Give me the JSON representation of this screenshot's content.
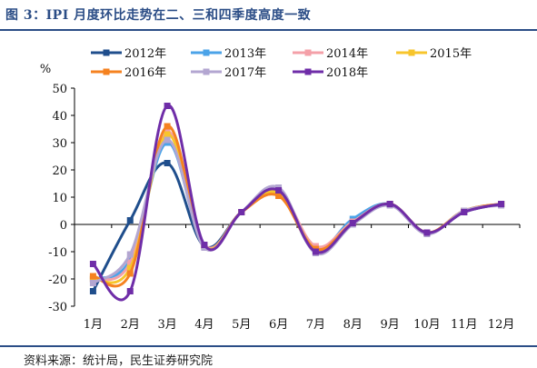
{
  "title": "图 3：IPI 月度环比走势在二、三和四季度高度一致",
  "source": "资料来源：统计局，民生证券研究院",
  "chart_data": {
    "type": "line",
    "ylabel": "%",
    "ylim": [
      -30,
      50
    ],
    "yticks": [
      50,
      40,
      30,
      20,
      10,
      0,
      -10,
      -20,
      -30
    ],
    "categories": [
      "1月",
      "2月",
      "3月",
      "4月",
      "5月",
      "6月",
      "7月",
      "8月",
      "9月",
      "10月",
      "11月",
      "12月"
    ],
    "legend_position": "top",
    "grid": false,
    "series": [
      {
        "name": "2012年",
        "color": "#1f4e8c",
        "values": [
          -24.5,
          1.5,
          22.5,
          -8,
          4.5,
          12,
          -10,
          0.5,
          7.5,
          -3,
          4.5,
          7.5
        ]
      },
      {
        "name": "2013年",
        "color": "#4ba3e8",
        "values": [
          -20,
          -13,
          30,
          -8,
          4.5,
          12,
          -9,
          2,
          7.5,
          -3,
          5,
          7.5
        ]
      },
      {
        "name": "2014年",
        "color": "#f4a0a8",
        "values": [
          -20,
          -14,
          34,
          -7.5,
          4.5,
          12,
          -8,
          1,
          7.5,
          -3,
          5,
          7.5
        ]
      },
      {
        "name": "2015年",
        "color": "#f7c52c",
        "values": [
          -20,
          -16,
          33,
          -8,
          4.5,
          11.5,
          -9,
          0.5,
          7.5,
          -3,
          5,
          7.5
        ]
      },
      {
        "name": "2016年",
        "color": "#f58220",
        "values": [
          -19,
          -18,
          36,
          -8,
          4.5,
          10.5,
          -9,
          0.5,
          7.5,
          -3,
          5,
          7.5
        ]
      },
      {
        "name": "2017年",
        "color": "#b3a6d1",
        "values": [
          -21.5,
          -11,
          31,
          -8.5,
          4.5,
          13.5,
          -10.5,
          0,
          7,
          -3.5,
          5,
          7
        ]
      },
      {
        "name": "2018年",
        "color": "#6f2da8",
        "values": [
          -14.5,
          -24.5,
          43.5,
          -7.5,
          4.5,
          12.5,
          -10,
          0.5,
          7.5,
          -3,
          4.5,
          7.5
        ]
      }
    ]
  }
}
